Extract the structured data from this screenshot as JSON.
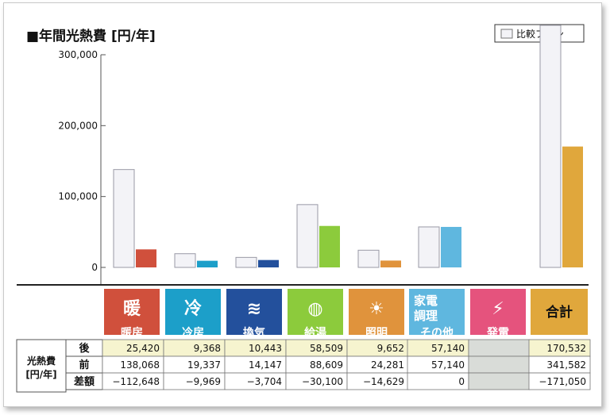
{
  "chart_data": {
    "type": "bar",
    "title": "■年間光熱費 [円/年]",
    "legend": [
      "比較プラン"
    ],
    "legend_position": "top-right",
    "ylim": [
      0,
      300000
    ],
    "yticks": [
      "0",
      "100,000",
      "200,000",
      "300,000"
    ],
    "categories": [
      "暖房",
      "冷房",
      "換気",
      "給湯",
      "照明",
      "家電調理その他",
      "発電",
      "合計"
    ],
    "series": [
      {
        "name": "比較プラン",
        "values": [
          138068,
          19337,
          14147,
          88609,
          24281,
          57140,
          0,
          341582
        ]
      },
      {
        "values": [
          25420,
          9368,
          10443,
          58509,
          9652,
          57140,
          0,
          170532
        ]
      }
    ],
    "category_colors": [
      "#d0503c",
      "#1c9fc9",
      "#23509c",
      "#8ccb3c",
      "#e0933c",
      "#5fb7df",
      "#e5537d",
      "#e0a73c"
    ],
    "compare_color": "#f3f3f7",
    "grid": false
  },
  "icons": [
    {
      "name": "heating-icon",
      "label": "暖",
      "sub": "暖房",
      "color": "#d0503c"
    },
    {
      "name": "cooling-icon",
      "label": "冷",
      "sub": "冷房",
      "color": "#1c9fc9"
    },
    {
      "name": "ventilation-icon",
      "label": "≋",
      "sub": "換気",
      "color": "#23509c"
    },
    {
      "name": "hot-water-icon",
      "label": "◍",
      "sub": "給湯",
      "color": "#8ccb3c"
    },
    {
      "name": "lighting-icon",
      "label": "☀",
      "sub": "照明",
      "color": "#e0933c"
    },
    {
      "name": "appliance-icon",
      "label": "家電",
      "label2": "調理",
      "sub": "その他",
      "color": "#5fb7df"
    },
    {
      "name": "generation-icon",
      "label": "⚡",
      "sub": "発電",
      "color": "#e5537d"
    }
  ],
  "total_label": "合計",
  "table": {
    "side_header": [
      "光熱費",
      "[円/年]"
    ],
    "rows": [
      {
        "label": "後",
        "values": [
          "25,420",
          "9,368",
          "10,443",
          "58,509",
          "9,652",
          "57,140",
          "",
          "170,532"
        ]
      },
      {
        "label": "前",
        "values": [
          "138,068",
          "19,337",
          "14,147",
          "88,609",
          "24,281",
          "57,140",
          "",
          "341,582"
        ]
      },
      {
        "label": "差額",
        "values": [
          "−112,648",
          "−9,969",
          "−3,704",
          "−30,100",
          "−14,629",
          "0",
          "",
          "−171,050"
        ]
      }
    ]
  }
}
